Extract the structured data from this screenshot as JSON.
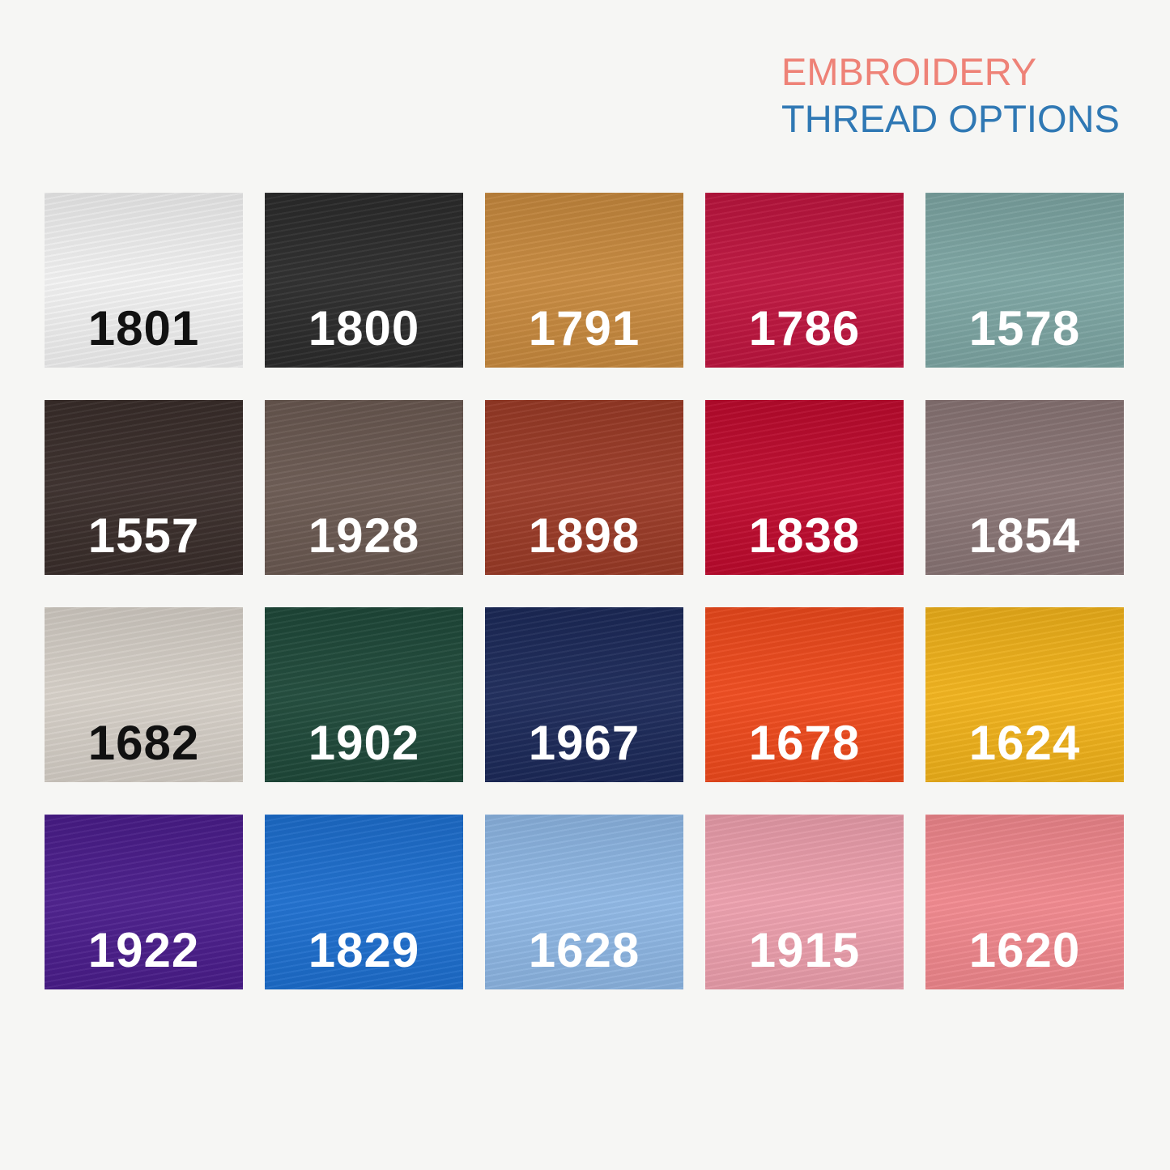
{
  "title": {
    "line1": "EMBROIDERY",
    "line2": "THREAD OPTIONS",
    "line1_color": "#ee8277",
    "line2_color": "#2f78b4"
  },
  "swatches": [
    {
      "code": "1801",
      "color": "#f3f3f3",
      "label_color": "#111111"
    },
    {
      "code": "1800",
      "color": "#2c2c2c",
      "label_color": "#ffffff"
    },
    {
      "code": "1791",
      "color": "#c98a3e",
      "label_color": "#ffffff"
    },
    {
      "code": "1786",
      "color": "#c0153f",
      "label_color": "#ffffff"
    },
    {
      "code": "1578",
      "color": "#7ea7a4",
      "label_color": "#ffffff"
    },
    {
      "code": "1557",
      "color": "#3a2e2b",
      "label_color": "#ffffff"
    },
    {
      "code": "1928",
      "color": "#6b5a52",
      "label_color": "#ffffff"
    },
    {
      "code": "1898",
      "color": "#9c3b27",
      "label_color": "#ffffff"
    },
    {
      "code": "1838",
      "color": "#c00a2e",
      "label_color": "#ffffff"
    },
    {
      "code": "1854",
      "color": "#8a7676",
      "label_color": "#ffffff"
    },
    {
      "code": "1682",
      "color": "#d7d1c9",
      "label_color": "#111111"
    },
    {
      "code": "1902",
      "color": "#1f4a3a",
      "label_color": "#ffffff"
    },
    {
      "code": "1967",
      "color": "#1c2a5a",
      "label_color": "#ffffff"
    },
    {
      "code": "1678",
      "color": "#f04a1c",
      "label_color": "#ffffff"
    },
    {
      "code": "1624",
      "color": "#f2b31a",
      "label_color": "#ffffff"
    },
    {
      "code": "1922",
      "color": "#4b1d8c",
      "label_color": "#ffffff"
    },
    {
      "code": "1829",
      "color": "#1d6fd0",
      "label_color": "#ffffff"
    },
    {
      "code": "1628",
      "color": "#8fb8e6",
      "label_color": "#ffffff"
    },
    {
      "code": "1915",
      "color": "#eea0ae",
      "label_color": "#ffffff"
    },
    {
      "code": "1620",
      "color": "#f2888e",
      "label_color": "#ffffff"
    }
  ]
}
